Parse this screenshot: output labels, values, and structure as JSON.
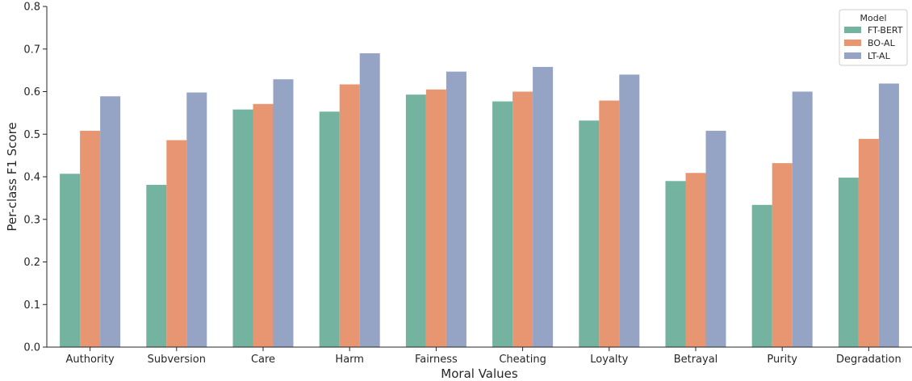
{
  "chart_data": {
    "type": "bar",
    "categories": [
      "Authority",
      "Subversion",
      "Care",
      "Harm",
      "Fairness",
      "Cheating",
      "Loyalty",
      "Betrayal",
      "Purity",
      "Degradation"
    ],
    "series": [
      {
        "name": "FT-BERT",
        "color": "#73b3a0",
        "values": [
          0.407,
          0.381,
          0.558,
          0.553,
          0.593,
          0.577,
          0.532,
          0.39,
          0.334,
          0.398
        ]
      },
      {
        "name": "BO-AL",
        "color": "#e89672",
        "values": [
          0.508,
          0.486,
          0.571,
          0.617,
          0.605,
          0.6,
          0.579,
          0.409,
          0.432,
          0.489
        ]
      },
      {
        "name": "LT-AL",
        "color": "#95a3c4",
        "values": [
          0.589,
          0.598,
          0.629,
          0.69,
          0.647,
          0.658,
          0.64,
          0.508,
          0.6,
          0.619
        ]
      }
    ],
    "xlabel": "Moral Values",
    "ylabel": "Per-class F1 Score",
    "ylim": [
      0.0,
      0.8
    ],
    "yticks": [
      "0.0",
      "0.1",
      "0.2",
      "0.3",
      "0.4",
      "0.5",
      "0.6",
      "0.7",
      "0.8"
    ],
    "legend": {
      "title": "Model",
      "placement": "top-right"
    },
    "grid": false
  }
}
